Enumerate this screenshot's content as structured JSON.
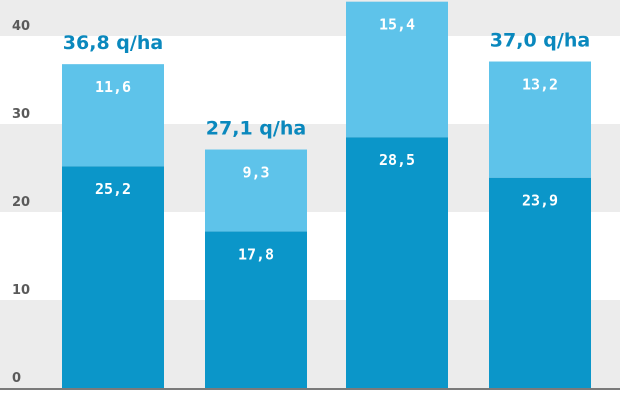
{
  "chart_data": {
    "type": "bar",
    "stacked": true,
    "categories": [
      "",
      "",
      "",
      ""
    ],
    "series": [
      {
        "values": [
          25.2,
          17.8,
          28.5,
          23.9
        ],
        "labels": [
          "25,2",
          "17,8",
          "28,5",
          "23,9"
        ],
        "color": "#0b96c9"
      },
      {
        "values": [
          11.6,
          9.3,
          15.4,
          13.2
        ],
        "labels": [
          "11,6",
          "9,3",
          "15,4",
          "13,2"
        ],
        "color": "#5ec3ea"
      }
    ],
    "totals": [
      "36,8 q/ha",
      "27,1 q/ha",
      "",
      "37,0 q/ha"
    ],
    "yticks": [
      "0",
      "10",
      "20",
      "30",
      "40"
    ],
    "ylim": [
      0,
      45
    ],
    "grid": "alternating bands",
    "colors": {
      "band_light": "#ececec",
      "band_white": "#ffffff",
      "baseline": "#7a7a7a",
      "total_text": "#0a88bd"
    }
  }
}
